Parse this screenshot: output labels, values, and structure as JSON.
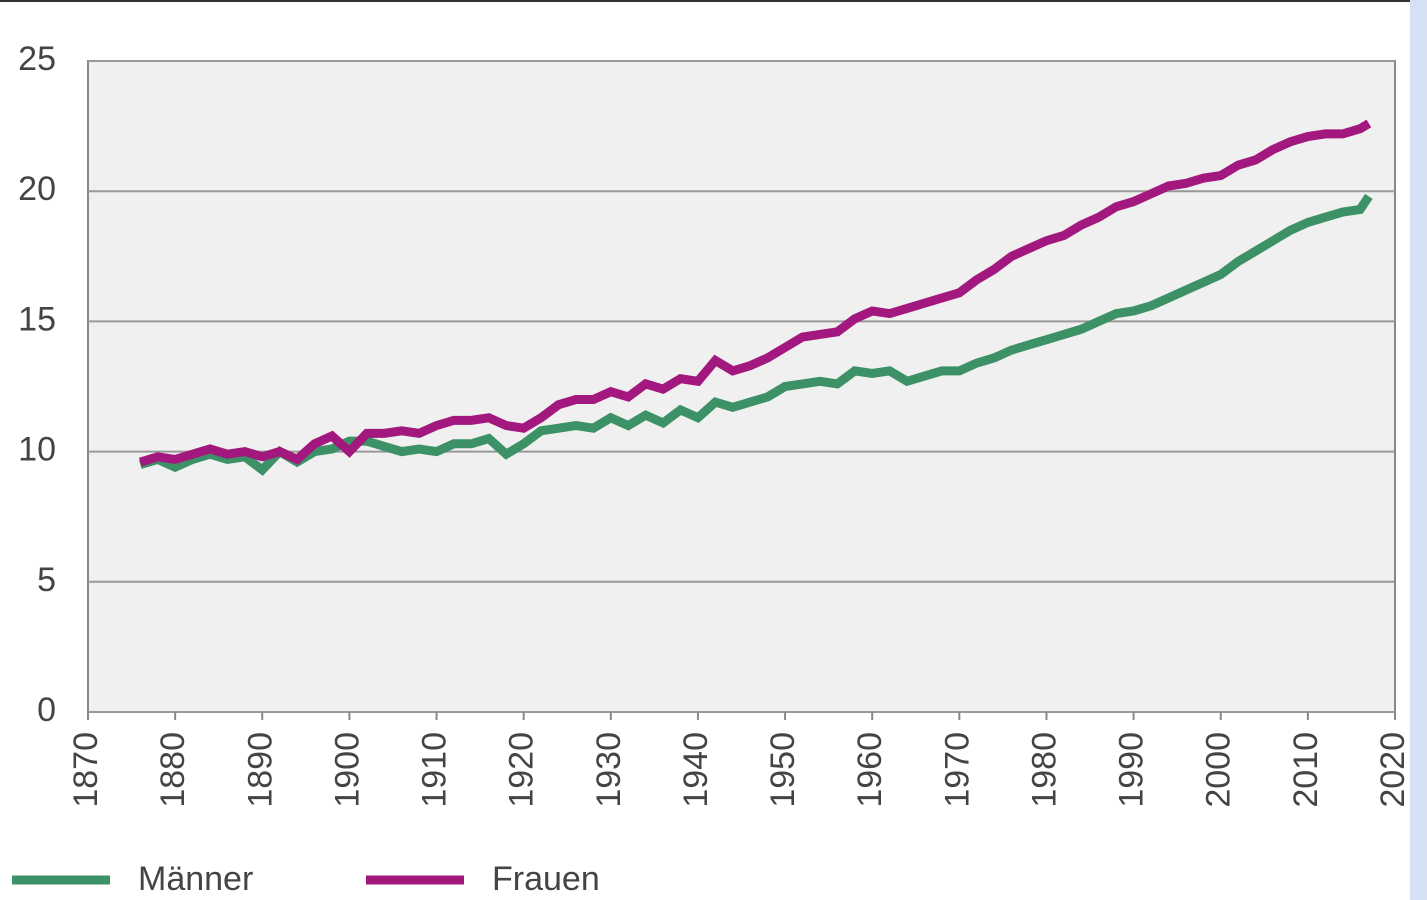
{
  "chart_data": {
    "type": "line",
    "x": [
      1876,
      1878,
      1880,
      1882,
      1884,
      1886,
      1888,
      1890,
      1892,
      1894,
      1896,
      1898,
      1900,
      1902,
      1904,
      1906,
      1908,
      1910,
      1912,
      1914,
      1916,
      1918,
      1920,
      1922,
      1924,
      1926,
      1928,
      1930,
      1932,
      1934,
      1936,
      1938,
      1940,
      1942,
      1944,
      1946,
      1948,
      1950,
      1952,
      1954,
      1956,
      1958,
      1960,
      1962,
      1964,
      1966,
      1968,
      1970,
      1972,
      1974,
      1976,
      1978,
      1980,
      1982,
      1984,
      1986,
      1988,
      1990,
      1992,
      1994,
      1996,
      1998,
      2000,
      2002,
      2004,
      2006,
      2008,
      2010,
      2012,
      2014,
      2016,
      2017
    ],
    "series": [
      {
        "name": "Männer",
        "color": "#3d9166",
        "values": [
          9.5,
          9.7,
          9.4,
          9.7,
          9.9,
          9.7,
          9.8,
          9.3,
          10.0,
          9.6,
          10.0,
          10.1,
          10.4,
          10.4,
          10.2,
          10.0,
          10.1,
          10.0,
          10.3,
          10.3,
          10.5,
          9.9,
          10.3,
          10.8,
          10.9,
          11.0,
          10.9,
          11.3,
          11.0,
          11.4,
          11.1,
          11.6,
          11.3,
          11.9,
          11.7,
          11.9,
          12.1,
          12.5,
          12.6,
          12.7,
          12.6,
          13.1,
          13.0,
          13.1,
          12.7,
          12.9,
          13.1,
          13.1,
          13.4,
          13.6,
          13.9,
          14.1,
          14.3,
          14.5,
          14.7,
          15.0,
          15.3,
          15.4,
          15.6,
          15.9,
          16.2,
          16.5,
          16.8,
          17.3,
          17.7,
          18.1,
          18.5,
          18.8,
          19.0,
          19.2,
          19.3,
          19.8
        ]
      },
      {
        "name": "Frauen",
        "color": "#a3187e",
        "values": [
          9.6,
          9.8,
          9.7,
          9.9,
          10.1,
          9.9,
          10.0,
          9.8,
          10.0,
          9.7,
          10.3,
          10.6,
          10.0,
          10.7,
          10.7,
          10.8,
          10.7,
          11.0,
          11.2,
          11.2,
          11.3,
          11.0,
          10.9,
          11.3,
          11.8,
          12.0,
          12.0,
          12.3,
          12.1,
          12.6,
          12.4,
          12.8,
          12.7,
          13.5,
          13.1,
          13.3,
          13.6,
          14.0,
          14.4,
          14.5,
          14.6,
          15.1,
          15.4,
          15.3,
          15.5,
          15.7,
          15.9,
          16.1,
          16.6,
          17.0,
          17.5,
          17.8,
          18.1,
          18.3,
          18.7,
          19.0,
          19.4,
          19.6,
          19.9,
          20.2,
          20.3,
          20.5,
          20.6,
          21.0,
          21.2,
          21.6,
          21.9,
          22.1,
          22.2,
          22.2,
          22.4,
          22.6
        ]
      }
    ],
    "xlim": [
      1870,
      2020
    ],
    "xticks": [
      1870,
      1880,
      1890,
      1900,
      1910,
      1920,
      1930,
      1940,
      1950,
      1960,
      1970,
      1980,
      1990,
      2000,
      2010,
      2020
    ],
    "ylim": [
      0,
      25
    ],
    "yticks": [
      0,
      5,
      10,
      15,
      20,
      25
    ],
    "grid": true,
    "legend": "bottom"
  }
}
